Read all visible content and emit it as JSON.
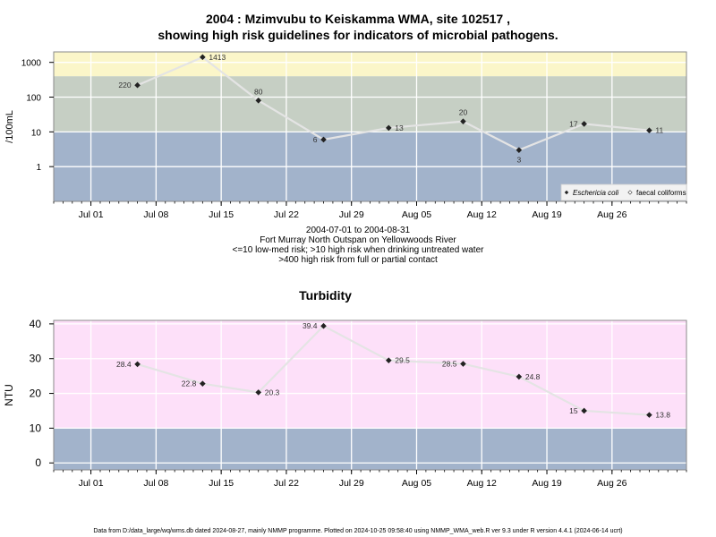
{
  "page": {
    "title_line1": "2004 : Mzimvubu to Keiskamma WMA, site 102517 ,",
    "title_line2": "showing high risk guidelines for indicators of microbial pathogens.",
    "caption": [
      "2004-07-01 to 2004-08-31",
      "Fort Murray North Outspan on Yellowwoods River",
      "<=10 low-med risk; >10 high risk when drinking untreated water",
      ">400 high risk from full or partial contact"
    ],
    "footer": "Data from D:/data_large/wq/wms.db dated 2024-08-27, mainly NMMP programme. Plotted on 2024-10-25 09:58:40 using NMMP_WMA_web.R ver 9.3 under R version 4.4.1 (2024-06-14 ucrt)"
  },
  "colors": {
    "band_blue": "#a2b3cb",
    "band_green": "#c6cfc4",
    "band_yellow": "#fbf6c9",
    "band_pink": "#fde0f9",
    "line": "#e4e4e4",
    "marker": "#222222"
  },
  "chart_data": [
    {
      "type": "line",
      "title": "",
      "xlabel": "",
      "ylabel": "/100mL",
      "yscale": "log",
      "ylim": [
        0.1,
        2000
      ],
      "xlim": [
        "2004-06-27",
        "2004-09-03"
      ],
      "xticks": [
        "2004-07-01",
        "2004-07-08",
        "2004-07-15",
        "2004-07-22",
        "2004-07-29",
        "2004-08-05",
        "2004-08-12",
        "2004-08-19",
        "2004-08-26"
      ],
      "xtick_labels": [
        "Jul 01",
        "Jul 08",
        "Jul 15",
        "Jul 22",
        "Jul 29",
        "Aug 05",
        "Aug 12",
        "Aug 19",
        "Aug 26"
      ],
      "yticks": [
        1,
        10,
        100,
        1000
      ],
      "ytick_labels": [
        "1",
        "10",
        "100",
        "1000"
      ],
      "bands": [
        {
          "from": 0.1,
          "to": 10,
          "color": "#a2b3cb"
        },
        {
          "from": 10,
          "to": 400,
          "color": "#c6cfc4"
        },
        {
          "from": 400,
          "to": 2000,
          "color": "#fbf6c9"
        }
      ],
      "legend": {
        "position": "bottom-right",
        "entries": [
          "Eschericia coli",
          "faecal coliforms"
        ]
      },
      "series": [
        {
          "name": "Eschericia coli",
          "x": [
            "2004-07-06",
            "2004-07-13",
            "2004-07-19",
            "2004-07-26",
            "2004-08-02",
            "2004-08-10",
            "2004-08-16",
            "2004-08-23",
            "2004-08-30"
          ],
          "values": [
            220,
            1413,
            80,
            6,
            13,
            20,
            3,
            17,
            11
          ],
          "labels": [
            "220",
            "1413",
            "80",
            "6",
            "13",
            "20",
            "3",
            "17",
            "11"
          ],
          "label_pos": [
            "left",
            "right",
            "above",
            "left",
            "right",
            "above",
            "below",
            "left",
            "right"
          ]
        }
      ]
    },
    {
      "type": "line",
      "title": "Turbidity",
      "xlabel": "",
      "ylabel": "NTU",
      "yscale": "linear",
      "ylim": [
        -2,
        41
      ],
      "xlim": [
        "2004-06-27",
        "2004-09-03"
      ],
      "xticks": [
        "2004-07-01",
        "2004-07-08",
        "2004-07-15",
        "2004-07-22",
        "2004-07-29",
        "2004-08-05",
        "2004-08-12",
        "2004-08-19",
        "2004-08-26"
      ],
      "xtick_labels": [
        "Jul 01",
        "Jul 08",
        "Jul 15",
        "Jul 22",
        "Jul 29",
        "Aug 05",
        "Aug 12",
        "Aug 19",
        "Aug 26"
      ],
      "yticks": [
        0,
        10,
        20,
        30,
        40
      ],
      "ytick_labels": [
        "0",
        "10",
        "20",
        "30",
        "40"
      ],
      "bands": [
        {
          "from": -2,
          "to": 10,
          "color": "#a2b3cb"
        },
        {
          "from": 10,
          "to": 41,
          "color": "#fde0f9"
        }
      ],
      "series": [
        {
          "name": "",
          "x": [
            "2004-07-06",
            "2004-07-13",
            "2004-07-19",
            "2004-07-26",
            "2004-08-02",
            "2004-08-10",
            "2004-08-16",
            "2004-08-23",
            "2004-08-30"
          ],
          "values": [
            28.4,
            22.8,
            20.3,
            39.4,
            29.5,
            28.5,
            24.8,
            15,
            13.8
          ],
          "labels": [
            "28.4",
            "22.8",
            "20.3",
            "39.4",
            "29.5",
            "28.5",
            "24.8",
            "15",
            "13.8"
          ],
          "label_pos": [
            "left",
            "left",
            "right",
            "left",
            "right",
            "left",
            "right",
            "left",
            "right"
          ]
        }
      ]
    }
  ]
}
